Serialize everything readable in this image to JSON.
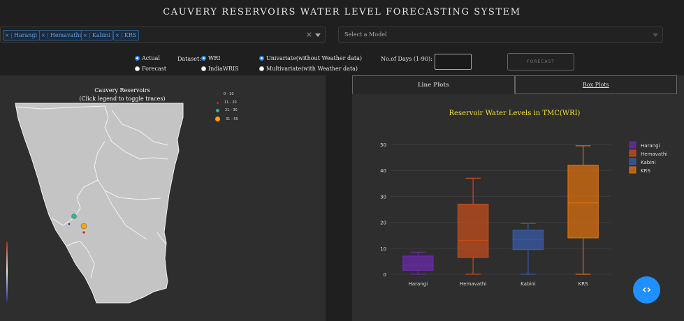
{
  "header": {
    "title": "CAUVERY RESERVOIRS WATER LEVEL FORECASTING SYSTEM"
  },
  "reservoir_select": {
    "tags": [
      "Harangi",
      "Hemavathi",
      "Kabini",
      "KRS"
    ],
    "clear_icon": "×"
  },
  "model_select": {
    "placeholder": "Select a Model"
  },
  "controls": {
    "mode_options": [
      {
        "label": "Actual",
        "selected": true
      },
      {
        "label": "Forecast",
        "selected": false
      }
    ],
    "dataset_label": "Dataset:",
    "dataset_options": [
      {
        "label": "WRI",
        "selected": true
      },
      {
        "label": "IndiaWRIS",
        "selected": false
      }
    ],
    "variate_options": [
      {
        "label": "Univariate(without Weather data)",
        "selected": true
      },
      {
        "label": "Multivariate(with Weather data)",
        "selected": false
      }
    ],
    "days_label": "No.of Days (1-90):",
    "days_value": "",
    "forecast_button": "FORECAST"
  },
  "map": {
    "title_line1": "Cauvery Reservoirs",
    "title_line2": "(Click legend to toggle traces)",
    "legend": [
      {
        "label": "0 - 10",
        "color": "#1a3aa8"
      },
      {
        "label": "11 - 20",
        "color": "#c8282c"
      },
      {
        "label": "21 - 30",
        "color": "#2bb59e"
      },
      {
        "label": "31 - 50",
        "color": "#ffa500"
      }
    ]
  },
  "tabs": [
    {
      "label": "Line Plots",
      "active": true
    },
    {
      "label": "Box Plots",
      "active": false
    }
  ],
  "chart_data": {
    "type": "box",
    "title": "Reservoir Water Levels in TMC(WRI)",
    "categories": [
      "Harangi",
      "Hemavathi",
      "Kabini",
      "KRS"
    ],
    "ylim": [
      0,
      50
    ],
    "yticks": [
      0,
      10,
      20,
      30,
      40,
      50
    ],
    "legend_position": "top-right",
    "series": [
      {
        "name": "Harangi",
        "color": "#6a2aa8",
        "min": 0,
        "q1": 1.5,
        "median": 3.5,
        "q3": 7,
        "max": 8.5
      },
      {
        "name": "Hemavathi",
        "color": "#c24e1c",
        "min": 0,
        "q1": 6.5,
        "median": 13,
        "q3": 27,
        "max": 37
      },
      {
        "name": "Kabini",
        "color": "#3a5aa8",
        "min": 0,
        "q1": 9.5,
        "median": 13.5,
        "q3": 17,
        "max": 19.5
      },
      {
        "name": "KRS",
        "color": "#d9700e",
        "min": 0,
        "q1": 14,
        "median": 27.5,
        "q3": 42,
        "max": 49.5
      }
    ]
  },
  "fab": {
    "icon": "code-icon",
    "glyph": "‹›"
  }
}
